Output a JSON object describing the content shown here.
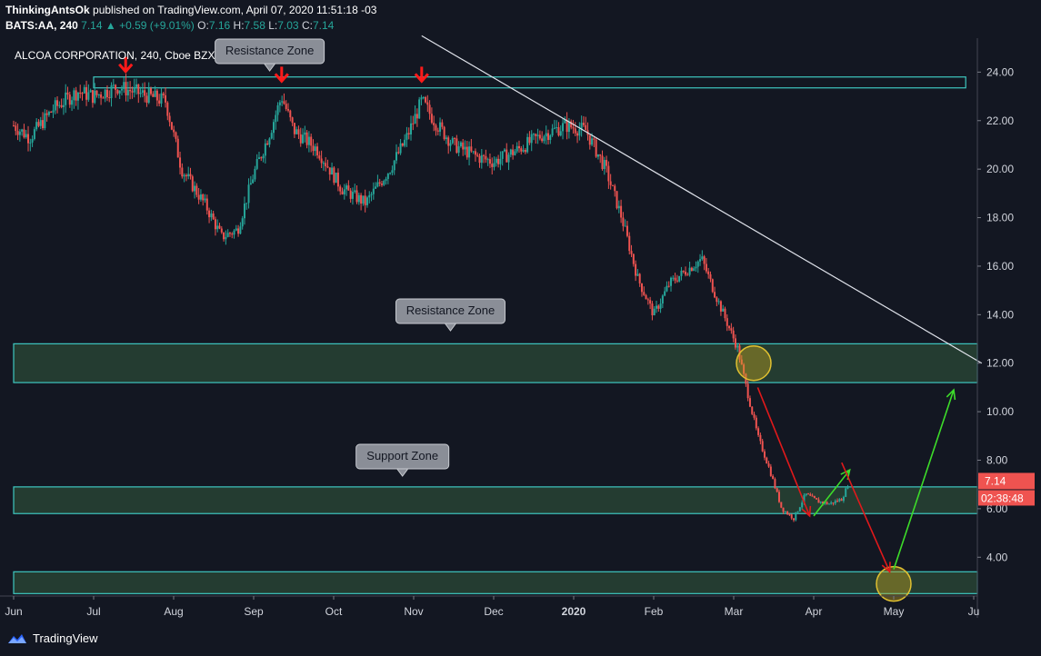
{
  "header": {
    "author": "ThinkingAntsOk",
    "published": "published on TradingView.com, April 07, 2020 11:51:18 -03",
    "symbol": "BATS:AA, 240",
    "last": "7.14",
    "change": "+0.59 (+9.01%)",
    "o_label": "O:",
    "o": "7.16",
    "h_label": "H:",
    "h": "7.58",
    "l_label": "L:",
    "l": "7.03",
    "c_label": "C:",
    "c": "7.14"
  },
  "footer": {
    "brand": "TradingView"
  },
  "chart_data": {
    "type": "candlestick",
    "title": "ALCOA CORPORATION, 240, Cboe BZX",
    "y_ticks": [
      "24.00",
      "22.00",
      "20.00",
      "18.00",
      "16.00",
      "14.00",
      "12.00",
      "10.00",
      "8.00",
      "6.00",
      "4.00"
    ],
    "ylim": [
      2.4,
      25.4
    ],
    "x_ticks": [
      "Jun",
      "Jul",
      "Aug",
      "Sep",
      "Oct",
      "Nov",
      "Dec",
      "2020",
      "Feb",
      "Mar",
      "Apr",
      "May",
      "Ju"
    ],
    "x_tick_months": [
      0,
      1,
      2,
      3,
      4,
      5,
      6,
      7,
      8,
      9,
      10,
      11,
      12
    ],
    "price_label": "7.14",
    "countdown_label": "02:38:48",
    "price_path": [
      [
        0,
        21.8
      ],
      [
        0.2,
        21.3
      ],
      [
        0.5,
        22.5
      ],
      [
        0.8,
        23.2
      ],
      [
        1.0,
        23.0
      ],
      [
        1.3,
        23.4
      ],
      [
        1.6,
        23.1
      ],
      [
        1.9,
        22.8
      ],
      [
        2.1,
        20.0
      ],
      [
        2.4,
        18.5
      ],
      [
        2.6,
        17.2
      ],
      [
        2.8,
        17.5
      ],
      [
        3.0,
        19.8
      ],
      [
        3.2,
        21.5
      ],
      [
        3.35,
        23.0
      ],
      [
        3.5,
        21.6
      ],
      [
        3.8,
        20.8
      ],
      [
        4.1,
        19.2
      ],
      [
        4.4,
        18.6
      ],
      [
        4.7,
        20.0
      ],
      [
        4.9,
        21.2
      ],
      [
        5.1,
        22.8
      ],
      [
        5.3,
        21.8
      ],
      [
        5.5,
        21.0
      ],
      [
        5.8,
        20.5
      ],
      [
        6.0,
        20.3
      ],
      [
        6.3,
        20.8
      ],
      [
        6.6,
        21.4
      ],
      [
        6.9,
        21.8
      ],
      [
        7.15,
        21.6
      ],
      [
        7.4,
        20.0
      ],
      [
        7.6,
        18.0
      ],
      [
        7.8,
        15.5
      ],
      [
        8.0,
        14.0
      ],
      [
        8.2,
        15.3
      ],
      [
        8.4,
        15.8
      ],
      [
        8.6,
        16.3
      ],
      [
        8.75,
        15.0
      ],
      [
        8.9,
        13.8
      ],
      [
        9.05,
        12.6
      ],
      [
        9.15,
        11.1
      ],
      [
        9.3,
        9.0
      ],
      [
        9.45,
        7.6
      ],
      [
        9.6,
        6.0
      ],
      [
        9.75,
        5.6
      ],
      [
        9.9,
        6.6
      ],
      [
        10.05,
        6.3
      ],
      [
        10.2,
        6.2
      ],
      [
        10.35,
        6.4
      ],
      [
        10.45,
        7.14
      ]
    ],
    "zones": [
      {
        "label": "Resistance Zone",
        "low": 23.35,
        "high": 23.8,
        "from_month": 1.0,
        "to_month": 11.9
      },
      {
        "label": "Resistance Zone",
        "low": 11.2,
        "high": 12.8,
        "from_month": 0,
        "to_month": 12.1
      },
      {
        "label": "Support Zone",
        "low": 5.8,
        "high": 6.9,
        "from_month": 0,
        "to_month": 12.1
      },
      {
        "label": "",
        "low": 2.5,
        "high": 3.4,
        "from_month": 0,
        "to_month": 12.1
      }
    ],
    "trendline": {
      "from": [
        5.1,
        25.5
      ],
      "to": [
        12.1,
        12.0
      ]
    },
    "red_markers": [
      [
        1.4,
        23.8
      ],
      [
        3.35,
        23.4
      ],
      [
        5.1,
        23.4
      ]
    ],
    "circles": [
      [
        9.25,
        12.0
      ],
      [
        11.0,
        2.9
      ]
    ],
    "arrows": [
      {
        "color": "red",
        "from": [
          9.3,
          11.0
        ],
        "to": [
          9.95,
          5.7
        ]
      },
      {
        "color": "green",
        "from": [
          10.0,
          5.7
        ],
        "to": [
          10.45,
          7.6
        ]
      },
      {
        "color": "red",
        "from": [
          10.35,
          7.9
        ],
        "to": [
          10.95,
          3.4
        ]
      },
      {
        "color": "green",
        "from": [
          11.0,
          3.5
        ],
        "to": [
          11.75,
          10.9
        ]
      }
    ]
  }
}
